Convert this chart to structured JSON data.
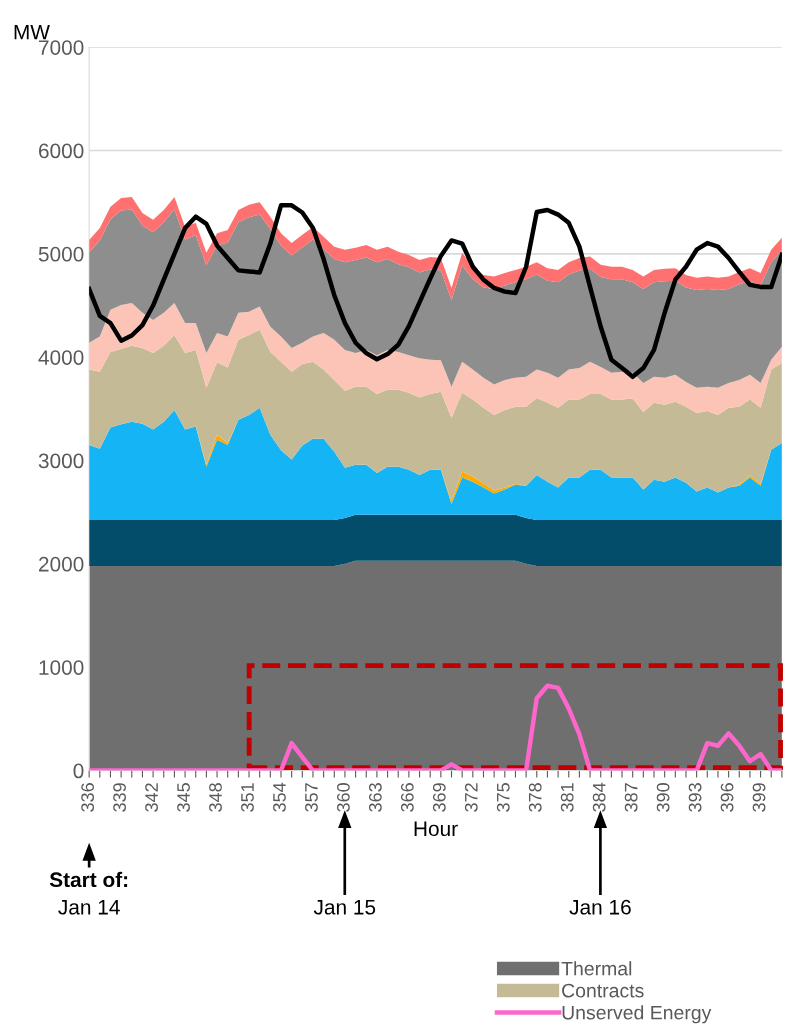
{
  "chart_data": {
    "type": "area",
    "stacked": true,
    "xlabel": "Hour",
    "ylabel": "MW",
    "x": [
      336,
      337,
      338,
      339,
      340,
      341,
      342,
      343,
      344,
      345,
      346,
      347,
      348,
      349,
      350,
      351,
      352,
      353,
      354,
      355,
      356,
      357,
      358,
      359,
      360,
      361,
      362,
      363,
      364,
      365,
      366,
      367,
      368,
      369,
      370,
      371,
      372,
      373,
      374,
      375,
      376,
      377,
      378,
      379,
      380,
      381,
      382,
      383,
      384,
      385,
      386,
      387,
      388,
      389,
      390,
      391,
      392,
      393,
      394,
      395,
      396,
      397,
      398,
      399,
      400,
      401
    ],
    "series": [
      {
        "name": "Thermal",
        "color": "#6f6f6f",
        "values": [
          1980,
          1980,
          1980,
          1980,
          1980,
          1980,
          1980,
          1980,
          1980,
          1980,
          1980,
          1980,
          1980,
          1980,
          1980,
          1980,
          1980,
          1980,
          1980,
          1980,
          1980,
          1980,
          1980,
          1980,
          2000,
          2030,
          2030,
          2030,
          2030,
          2030,
          2030,
          2030,
          2030,
          2030,
          2030,
          2030,
          2030,
          2030,
          2030,
          2030,
          2030,
          2000,
          1980,
          1980,
          1980,
          1980,
          1980,
          1980,
          1980,
          1980,
          1980,
          1980,
          1980,
          1980,
          1980,
          1980,
          1980,
          1980,
          1980,
          1980,
          1980,
          1980,
          1980,
          1980,
          1980,
          1980
        ]
      },
      {
        "color": "#034d6b",
        "values": [
          445,
          445,
          445,
          445,
          445,
          445,
          445,
          445,
          445,
          445,
          445,
          445,
          445,
          445,
          445,
          445,
          445,
          445,
          445,
          445,
          445,
          445,
          445,
          445,
          445,
          445,
          445,
          445,
          445,
          445,
          445,
          445,
          445,
          445,
          445,
          445,
          445,
          445,
          445,
          445,
          445,
          445,
          445,
          445,
          445,
          445,
          445,
          445,
          445,
          445,
          445,
          445,
          445,
          445,
          445,
          445,
          445,
          445,
          445,
          445,
          445,
          445,
          445,
          445,
          445,
          445
        ]
      },
      {
        "color": "#15b4f5",
        "values": [
          725,
          690,
          895,
          925,
          950,
          930,
          875,
          950,
          1065,
          875,
          905,
          515,
          775,
          725,
          970,
          1015,
          1085,
          825,
          675,
          585,
          720,
          785,
          785,
          660,
          485,
          485,
          485,
          405,
          465,
          465,
          435,
          385,
          435,
          435,
          105,
          360,
          320,
          265,
          205,
          245,
          290,
          310,
          435,
          370,
          315,
          410,
          410,
          485,
          485,
          410,
          410,
          410,
          295,
          390,
          370,
          410,
          360,
          275,
          315,
          265,
          315,
          330,
          410,
          330,
          680,
          745
        ]
      },
      {
        "color": "#ffaa00",
        "values": [
          0,
          0,
          0,
          0,
          0,
          0,
          0,
          0,
          0,
          0,
          0,
          20,
          50,
          20,
          0,
          0,
          0,
          0,
          0,
          0,
          0,
          0,
          0,
          0,
          0,
          0,
          0,
          0,
          0,
          0,
          0,
          0,
          0,
          0,
          30,
          60,
          50,
          40,
          30,
          20,
          10,
          0,
          0,
          0,
          0,
          0,
          0,
          0,
          0,
          0,
          0,
          0,
          0,
          0,
          0,
          0,
          0,
          0,
          0,
          0,
          0,
          10,
          20,
          20,
          0,
          0
        ]
      },
      {
        "name": "Contracts",
        "color": "#c4bb96",
        "values": [
          730,
          745,
          730,
          730,
          735,
          735,
          740,
          735,
          725,
          740,
          740,
          745,
          700,
          730,
          775,
          775,
          755,
          800,
          855,
          850,
          790,
          745,
          670,
          695,
          745,
          755,
          755,
          765,
          745,
          745,
          745,
          750,
          735,
          755,
          805,
          760,
          745,
          730,
          730,
          750,
          745,
          765,
          745,
          765,
          770,
          755,
          755,
          735,
          735,
          755,
          755,
          765,
          750,
          745,
          745,
          735,
          735,
          760,
          740,
          750,
          770,
          755,
          735,
          735,
          775,
          775
        ]
      },
      {
        "color": "#fcc4b6",
        "values": [
          260,
          340,
          410,
          425,
          415,
          340,
          320,
          320,
          310,
          290,
          260,
          335,
          285,
          300,
          260,
          225,
          225,
          245,
          245,
          230,
          205,
          245,
          355,
          390,
          395,
          325,
          355,
          375,
          385,
          365,
          365,
          380,
          330,
          305,
          300,
          300,
          290,
          290,
          295,
          290,
          280,
          290,
          275,
          290,
          290,
          290,
          305,
          310,
          260,
          260,
          270,
          250,
          280,
          250,
          260,
          260,
          240,
          245,
          235,
          265,
          240,
          260,
          240,
          240,
          95,
          155
        ]
      },
      {
        "color": "#8e8e8e",
        "values": [
          875,
          930,
          875,
          915,
          905,
          845,
          850,
          875,
          905,
          810,
          850,
          850,
          845,
          910,
          875,
          915,
          890,
          945,
          880,
          895,
          925,
          940,
          810,
          780,
          850,
          900,
          895,
          900,
          880,
          850,
          850,
          830,
          875,
          870,
          835,
          935,
          875,
          875,
          925,
          915,
          925,
          945,
          920,
          890,
          925,
          920,
          945,
          900,
          870,
          905,
          895,
          875,
          910,
          915,
          935,
          910,
          915,
          945,
          945,
          945,
          910,
          925,
          910,
          945,
          945,
          935
        ]
      },
      {
        "color": "#ff7070",
        "values": [
          120,
          120,
          120,
          120,
          120,
          120,
          120,
          120,
          120,
          120,
          120,
          120,
          120,
          120,
          120,
          120,
          120,
          120,
          120,
          120,
          120,
          120,
          120,
          120,
          120,
          120,
          120,
          120,
          120,
          120,
          120,
          120,
          120,
          120,
          120,
          120,
          120,
          120,
          120,
          120,
          120,
          120,
          120,
          120,
          120,
          120,
          120,
          120,
          120,
          120,
          120,
          120,
          120,
          120,
          120,
          120,
          120,
          120,
          120,
          120,
          120,
          120,
          120,
          120,
          120,
          120
        ]
      },
      {
        "type": "line",
        "color": "#000000",
        "values": [
          4660,
          4400,
          4330,
          4160,
          4210,
          4310,
          4500,
          4750,
          5000,
          5250,
          5360,
          5290,
          5080,
          4960,
          4840,
          4830,
          4820,
          5100,
          5470,
          5470,
          5400,
          5250,
          4950,
          4600,
          4330,
          4140,
          4040,
          3980,
          4030,
          4120,
          4300,
          4530,
          4760,
          4980,
          5130,
          5100,
          4875,
          4750,
          4670,
          4635,
          4620,
          4875,
          5405,
          5425,
          5380,
          5300,
          5070,
          4680,
          4295,
          3975,
          3895,
          3810,
          3895,
          4070,
          4430,
          4750,
          4875,
          5040,
          5105,
          5070,
          4960,
          4825,
          4700,
          4680,
          4680,
          4990
        ]
      },
      {
        "type": "line",
        "name": "Unserved Energy",
        "color": "#ff66cc",
        "values": [
          0,
          0,
          0,
          0,
          0,
          0,
          0,
          0,
          0,
          0,
          0,
          0,
          0,
          0,
          0,
          0,
          0,
          0,
          0,
          265,
          130,
          0,
          0,
          0,
          0,
          0,
          0,
          0,
          0,
          0,
          0,
          0,
          0,
          0,
          60,
          0,
          0,
          0,
          0,
          0,
          0,
          0,
          700,
          820,
          800,
          600,
          350,
          0,
          0,
          0,
          0,
          0,
          0,
          0,
          0,
          0,
          0,
          0,
          265,
          240,
          360,
          240,
          90,
          160,
          0,
          0
        ]
      }
    ],
    "xlim": [
      336,
      401
    ],
    "xticks": [
      336,
      {
        "value": 337,
        "label": null
      },
      {
        "value": 338,
        "label": null
      },
      339,
      {
        "value": 340,
        "label": null
      },
      {
        "value": 341,
        "label": null
      },
      342,
      {
        "value": 343,
        "label": null
      },
      {
        "value": 344,
        "label": null
      },
      345,
      {
        "value": 346,
        "label": null
      },
      {
        "value": 347,
        "label": null
      },
      348,
      {
        "value": 349,
        "label": null
      },
      {
        "value": 350,
        "label": null
      },
      351,
      {
        "value": 352,
        "label": null
      },
      {
        "value": 353,
        "label": null
      },
      354,
      {
        "value": 355,
        "label": null
      },
      {
        "value": 356,
        "label": null
      },
      357,
      {
        "value": 358,
        "label": null
      },
      {
        "value": 359,
        "label": null
      },
      360,
      {
        "value": 361,
        "label": null
      },
      {
        "value": 362,
        "label": null
      },
      363,
      {
        "value": 364,
        "label": null
      },
      {
        "value": 365,
        "label": null
      },
      366,
      {
        "value": 367,
        "label": null
      },
      {
        "value": 368,
        "label": null
      },
      369,
      {
        "value": 370,
        "label": null
      },
      {
        "value": 371,
        "label": null
      },
      372,
      {
        "value": 373,
        "label": null
      },
      {
        "value": 374,
        "label": null
      },
      375,
      {
        "value": 376,
        "label": null
      },
      {
        "value": 377,
        "label": null
      },
      378,
      {
        "value": 379,
        "label": null
      },
      {
        "value": 380,
        "label": null
      },
      381,
      {
        "value": 382,
        "label": null
      },
      {
        "value": 383,
        "label": null
      },
      384,
      {
        "value": 385,
        "label": null
      },
      {
        "value": 386,
        "label": null
      },
      387,
      {
        "value": 388,
        "label": null
      },
      {
        "value": 389,
        "label": null
      },
      390,
      {
        "value": 391,
        "label": null
      },
      {
        "value": 392,
        "label": null
      },
      393,
      {
        "value": 394,
        "label": null
      },
      {
        "value": 395,
        "label": null
      },
      396,
      {
        "value": 397,
        "label": null
      },
      {
        "value": 398,
        "label": null
      },
      399,
      {
        "value": 400,
        "label": null
      },
      {
        "value": 401,
        "label": null
      }
    ],
    "ylim": [
      0,
      7000
    ],
    "yticks": [
      0,
      1000,
      2000,
      3000,
      4000,
      5000,
      6000,
      7000
    ],
    "grid": "y",
    "legend": "bottom right",
    "annotations": [
      "Start of:",
      "Jan 14",
      "Jan 15",
      "Jan 16"
    ]
  }
}
